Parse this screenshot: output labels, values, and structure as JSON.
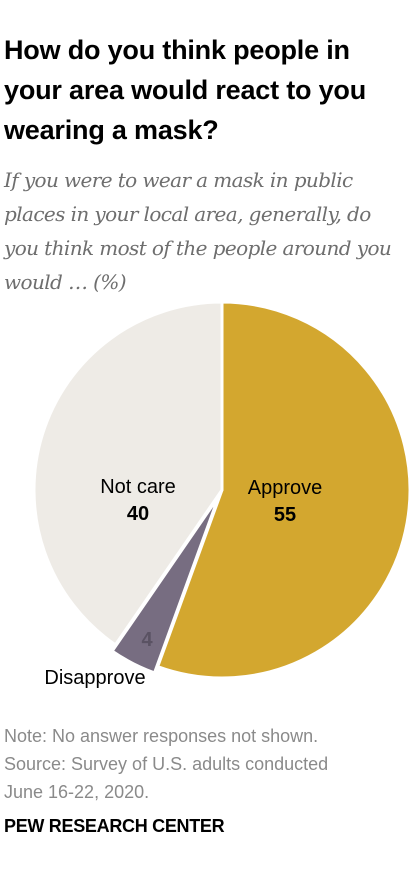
{
  "chart_data": {
    "type": "pie",
    "title": "How do you think people in your area would react to you wearing a mask?",
    "subtitle": "If you were to wear a mask in public places in your local area, generally, do you think most of the people around you would … (%)",
    "categories": [
      "Approve",
      "Disapprove",
      "Not care"
    ],
    "values": [
      55,
      4,
      40
    ],
    "colors": [
      "#d3a72f",
      "#776d81",
      "#eeebe6"
    ],
    "start": "12 o'clock, clockwise"
  },
  "notes": {
    "line1": "Note: No answer responses not shown.",
    "line2": "Source: Survey of U.S. adults conducted",
    "line3": "June 16-22, 2020."
  },
  "footer": {
    "source_org": "PEW RESEARCH CENTER"
  }
}
